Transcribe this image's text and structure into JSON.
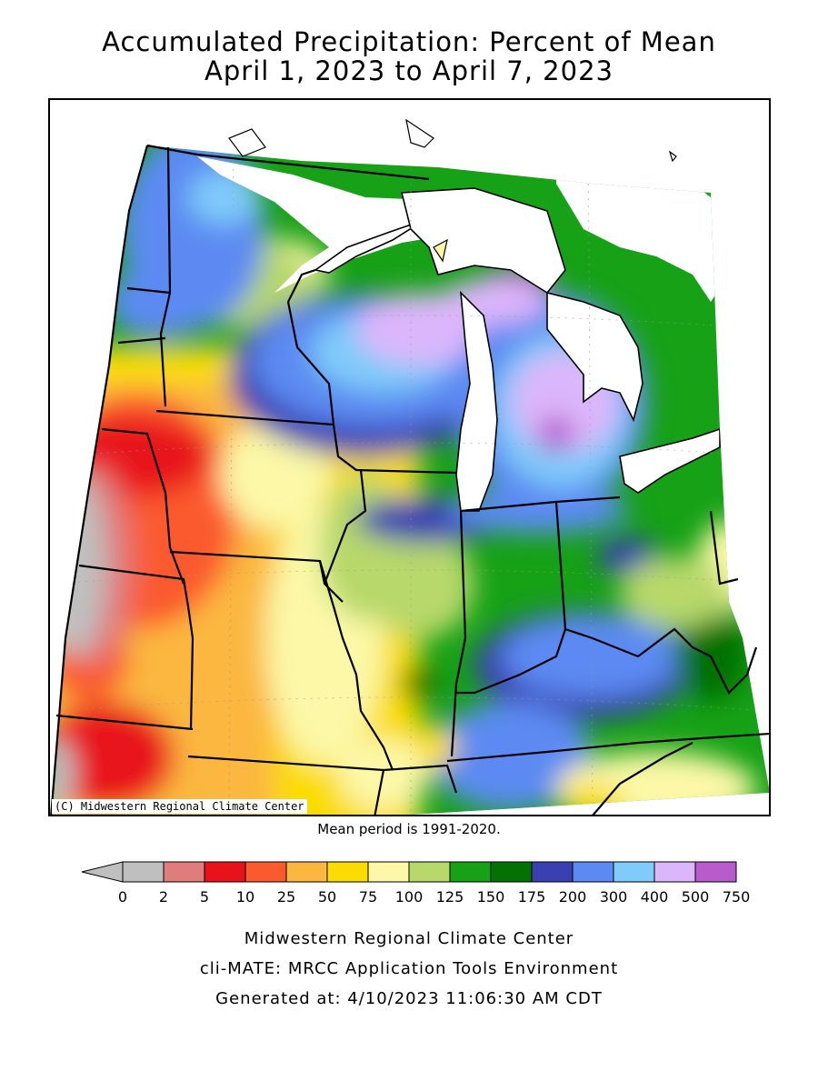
{
  "title_line1": "Accumulated Precipitation: Percent of Mean",
  "title_line2": "April 1, 2023 to April 7, 2023",
  "copyright": "(C) Midwestern Regional Climate Center",
  "mean_period": "Mean period is 1991-2020.",
  "legend": {
    "labels": [
      "0",
      "2",
      "5",
      "10",
      "25",
      "50",
      "75",
      "100",
      "125",
      "150",
      "175",
      "200",
      "300",
      "400",
      "500",
      "750"
    ],
    "colors": [
      "#bfbfbf",
      "#e07c7c",
      "#e8131a",
      "#fb5a2e",
      "#fbb73f",
      "#fbdc00",
      "#fcf8a7",
      "#b7d86a",
      "#16a116",
      "#037103",
      "#3a3fb1",
      "#5c8af2",
      "#7fcbfa",
      "#dcb6fb",
      "#b85ccd"
    ]
  },
  "footer_line1": "Midwestern Regional Climate Center",
  "footer_line2": "cli-MATE: MRCC Application Tools Environment",
  "footer_line3": "Generated at: 4/10/2023 11:06:30 AM CDT"
}
